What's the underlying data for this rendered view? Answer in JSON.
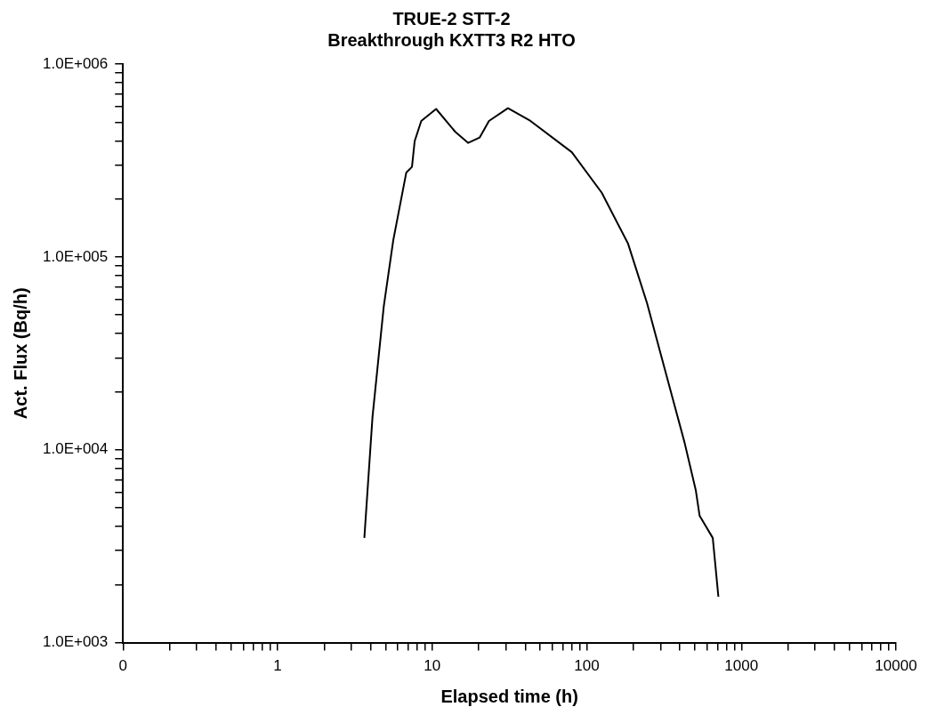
{
  "chart_data": {
    "type": "line",
    "title": "TRUE-2 STT-2",
    "subtitle": "Breakthrough KXTT3 R2 HTO",
    "xlabel": "Elapsed time (h)",
    "ylabel": "Act. Flux (Bq/h)",
    "log": "xy",
    "grid": false,
    "legend": false,
    "marker": "none",
    "line_style": "solid",
    "xlim": [
      0.1,
      10000
    ],
    "ylim": [
      1000,
      1000000
    ],
    "xticks": [
      {
        "value": 0.1,
        "label": "0"
      },
      {
        "value": 0.2,
        "label": null
      },
      {
        "value": 0.3,
        "label": null
      },
      {
        "value": 0.4,
        "label": null
      },
      {
        "value": 0.5,
        "label": null
      },
      {
        "value": 0.6,
        "label": null
      },
      {
        "value": 0.7,
        "label": null
      },
      {
        "value": 0.8,
        "label": null
      },
      {
        "value": 0.9,
        "label": null
      },
      1,
      {
        "value": 2,
        "label": null
      },
      {
        "value": 3,
        "label": null
      },
      {
        "value": 4,
        "label": null
      },
      {
        "value": 5,
        "label": null
      },
      {
        "value": 6,
        "label": null
      },
      {
        "value": 7,
        "label": null
      },
      {
        "value": 8,
        "label": null
      },
      {
        "value": 9,
        "label": null
      },
      10,
      {
        "value": 20,
        "label": null
      },
      {
        "value": 30,
        "label": null
      },
      {
        "value": 40,
        "label": null
      },
      {
        "value": 50,
        "label": null
      },
      {
        "value": 60,
        "label": null
      },
      {
        "value": 70,
        "label": null
      },
      {
        "value": 80,
        "label": null
      },
      {
        "value": 90,
        "label": null
      },
      100,
      {
        "value": 200,
        "label": null
      },
      {
        "value": 300,
        "label": null
      },
      {
        "value": 400,
        "label": null
      },
      {
        "value": 500,
        "label": null
      },
      {
        "value": 600,
        "label": null
      },
      {
        "value": 700,
        "label": null
      },
      {
        "value": 800,
        "label": null
      },
      {
        "value": 900,
        "label": null
      },
      1000,
      {
        "value": 2000,
        "label": null
      },
      {
        "value": 3000,
        "label": null
      },
      {
        "value": 4000,
        "label": null
      },
      {
        "value": 5000,
        "label": null
      },
      {
        "value": 6000,
        "label": null
      },
      {
        "value": 7000,
        "label": null
      },
      {
        "value": 8000,
        "label": null
      },
      {
        "value": 9000,
        "label": null
      },
      10000
    ],
    "yticks": [
      {
        "value": 1000,
        "label": "1.0E+003"
      },
      {
        "value": 2000,
        "label": null
      },
      {
        "value": 3000,
        "label": null
      },
      {
        "value": 4000,
        "label": null
      },
      {
        "value": 5000,
        "label": null
      },
      {
        "value": 6000,
        "label": null
      },
      {
        "value": 7000,
        "label": null
      },
      {
        "value": 8000,
        "label": null
      },
      {
        "value": 9000,
        "label": null
      },
      {
        "value": 10000,
        "label": "1.0E+004"
      },
      {
        "value": 20000,
        "label": null
      },
      {
        "value": 30000,
        "label": null
      },
      {
        "value": 40000,
        "label": null
      },
      {
        "value": 50000,
        "label": null
      },
      {
        "value": 60000,
        "label": null
      },
      {
        "value": 70000,
        "label": null
      },
      {
        "value": 80000,
        "label": null
      },
      {
        "value": 90000,
        "label": null
      },
      {
        "value": 100000,
        "label": "1.0E+005"
      },
      {
        "value": 200000,
        "label": null
      },
      {
        "value": 300000,
        "label": null
      },
      {
        "value": 400000,
        "label": null
      },
      {
        "value": 500000,
        "label": null
      },
      {
        "value": 600000,
        "label": null
      },
      {
        "value": 700000,
        "label": null
      },
      {
        "value": 800000,
        "label": null
      },
      {
        "value": 900000,
        "label": null
      },
      {
        "value": 1000000,
        "label": "1.0E+006"
      }
    ],
    "x": [
      3.64,
      4.11,
      4.86,
      5.6,
      6.8,
      7.4,
      7.7,
      8.5,
      10.6,
      14.1,
      17.1,
      20.3,
      23.3,
      30.9,
      43.2,
      80,
      125,
      185,
      245,
      324,
      429,
      507,
      537,
      653,
      710
    ],
    "series": [
      {
        "color": "#000000",
        "values": [
          3490,
          14800,
          55300,
          122000,
          274000,
          293000,
          398000,
          507000,
          585000,
          445000,
          390000,
          416000,
          507000,
          590000,
          507000,
          349000,
          215000,
          117000,
          57800,
          25100,
          10900,
          6170,
          4540,
          3490,
          1730
        ]
      }
    ]
  }
}
